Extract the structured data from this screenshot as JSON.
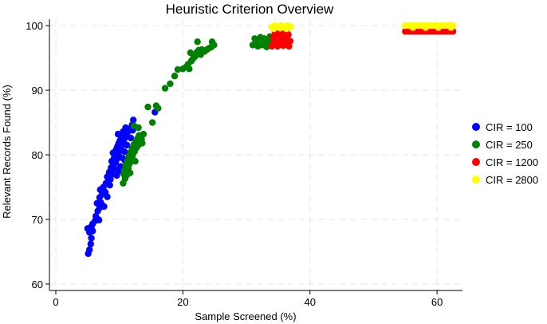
{
  "chart_data": {
    "type": "scatter",
    "title": "Heuristic Criterion Overview",
    "xlabel": "Sample Screened (%)",
    "ylabel": "Relevant Records Found (%)",
    "xlim": [
      -1,
      64
    ],
    "ylim": [
      59,
      101
    ],
    "xticks": [
      0,
      20,
      40,
      60
    ],
    "yticks": [
      60,
      70,
      80,
      90,
      100
    ],
    "grid": true,
    "legend_position": "right",
    "series": [
      {
        "name": "CIR = 100",
        "color": "#0000ff",
        "points": [
          [
            5.1,
            64.7
          ],
          [
            5.3,
            65.3
          ],
          [
            5.5,
            66.2
          ],
          [
            5.6,
            67.1
          ],
          [
            5.3,
            68.0
          ],
          [
            5.0,
            68.6
          ],
          [
            5.6,
            68.9
          ],
          [
            5.8,
            69.3
          ],
          [
            6.2,
            69.8
          ],
          [
            6.5,
            70.1
          ],
          [
            6.8,
            69.9
          ],
          [
            6.6,
            71.3
          ],
          [
            6.9,
            71.8
          ],
          [
            6.5,
            72.5
          ],
          [
            7.1,
            72.6
          ],
          [
            6.9,
            73.4
          ],
          [
            7.3,
            73.9
          ],
          [
            7.0,
            74.6
          ],
          [
            7.5,
            75.0
          ],
          [
            7.8,
            74.2
          ],
          [
            8.1,
            73.5
          ],
          [
            7.9,
            75.6
          ],
          [
            8.3,
            76.0
          ],
          [
            8.1,
            76.6
          ],
          [
            8.6,
            76.2
          ],
          [
            8.4,
            77.3
          ],
          [
            8.9,
            77.0
          ],
          [
            8.7,
            78.0
          ],
          [
            9.1,
            78.4
          ],
          [
            8.8,
            79.0
          ],
          [
            9.4,
            78.8
          ],
          [
            9.2,
            79.6
          ],
          [
            9.6,
            79.3
          ],
          [
            9.0,
            80.3
          ],
          [
            9.8,
            80.0
          ],
          [
            9.5,
            80.8
          ],
          [
            10.0,
            80.6
          ],
          [
            9.7,
            81.3
          ],
          [
            10.2,
            81.0
          ],
          [
            9.9,
            81.8
          ],
          [
            10.4,
            81.5
          ],
          [
            10.1,
            82.2
          ],
          [
            10.6,
            82.0
          ],
          [
            10.3,
            82.8
          ],
          [
            10.8,
            82.5
          ],
          [
            9.8,
            83.2
          ],
          [
            11.0,
            83.0
          ],
          [
            11.3,
            83.5
          ],
          [
            11.6,
            84.0
          ],
          [
            12.0,
            84.6
          ],
          [
            12.2,
            85.4
          ],
          [
            11.0,
            84.2
          ],
          [
            15.6,
            86.6
          ],
          [
            10.0,
            77.5
          ],
          [
            9.3,
            77.8
          ],
          [
            10.5,
            79.5
          ],
          [
            10.8,
            80.5
          ],
          [
            9.6,
            76.8
          ],
          [
            8.5,
            75.3
          ],
          [
            11.2,
            81.5
          ],
          [
            10.9,
            79.1
          ],
          [
            11.5,
            80.2
          ],
          [
            7.6,
            72.0
          ],
          [
            6.3,
            70.5
          ],
          [
            5.8,
            68.2
          ],
          [
            10.2,
            78.2
          ],
          [
            9.9,
            79.9
          ],
          [
            11.8,
            82.6
          ],
          [
            12.1,
            83.8
          ],
          [
            10.6,
            83.6
          ]
        ]
      },
      {
        "name": "CIR = 250",
        "color": "#008000",
        "points": [
          [
            10.6,
            75.6
          ],
          [
            10.9,
            76.3
          ],
          [
            11.2,
            76.9
          ],
          [
            10.8,
            77.6
          ],
          [
            11.4,
            77.9
          ],
          [
            11.0,
            78.4
          ],
          [
            11.6,
            78.6
          ],
          [
            11.3,
            79.1
          ],
          [
            11.9,
            79.3
          ],
          [
            11.5,
            79.8
          ],
          [
            12.1,
            79.9
          ],
          [
            11.8,
            80.4
          ],
          [
            12.4,
            80.5
          ],
          [
            12.0,
            81.0
          ],
          [
            12.7,
            81.1
          ],
          [
            12.3,
            81.6
          ],
          [
            13.0,
            81.5
          ],
          [
            12.6,
            82.1
          ],
          [
            13.3,
            82.0
          ],
          [
            12.9,
            82.6
          ],
          [
            13.5,
            82.4
          ],
          [
            13.1,
            83.0
          ],
          [
            12.3,
            84.5
          ],
          [
            13.0,
            84.2
          ],
          [
            13.8,
            83.2
          ],
          [
            14.5,
            87.4
          ],
          [
            15.2,
            85.0
          ],
          [
            16.1,
            87.2
          ],
          [
            15.8,
            87.6
          ],
          [
            17.2,
            90.3
          ],
          [
            18.0,
            91.0
          ],
          [
            18.7,
            92.2
          ],
          [
            19.2,
            93.2
          ],
          [
            20.0,
            93.3
          ],
          [
            20.5,
            93.6
          ],
          [
            20.8,
            94.0
          ],
          [
            21.0,
            93.3
          ],
          [
            21.3,
            94.5
          ],
          [
            21.6,
            94.9
          ],
          [
            21.9,
            95.2
          ],
          [
            21.2,
            95.8
          ],
          [
            22.2,
            95.9
          ],
          [
            22.5,
            96.2
          ],
          [
            22.8,
            95.5
          ],
          [
            23.0,
            96.3
          ],
          [
            23.4,
            96.0
          ],
          [
            23.8,
            96.3
          ],
          [
            24.1,
            96.5
          ],
          [
            24.5,
            96.7
          ],
          [
            24.9,
            97.0
          ],
          [
            24.6,
            97.5
          ],
          [
            22.3,
            97.5
          ],
          [
            31.0,
            97.0
          ],
          [
            31.5,
            97.4
          ],
          [
            32.0,
            97.8
          ],
          [
            32.5,
            97.0
          ],
          [
            33.0,
            97.3
          ],
          [
            31.8,
            96.8
          ],
          [
            32.8,
            98.0
          ],
          [
            33.5,
            97.6
          ],
          [
            34.0,
            97.2
          ],
          [
            33.7,
            98.3
          ],
          [
            32.2,
            98.2
          ],
          [
            31.3,
            98.0
          ],
          [
            34.5,
            97.5
          ],
          [
            33.2,
            96.7
          ],
          [
            12.5,
            79.0
          ],
          [
            11.7,
            77.2
          ],
          [
            13.6,
            81.8
          ],
          [
            10.7,
            77.0
          ]
        ]
      },
      {
        "name": "CIR = 1200",
        "color": "#ff0000",
        "points": [
          [
            34.0,
            96.8
          ],
          [
            34.3,
            97.2
          ],
          [
            34.6,
            97.6
          ],
          [
            34.9,
            96.8
          ],
          [
            35.2,
            97.3
          ],
          [
            35.5,
            97.8
          ],
          [
            35.8,
            96.9
          ],
          [
            36.1,
            97.4
          ],
          [
            36.4,
            97.9
          ],
          [
            36.7,
            96.8
          ],
          [
            34.2,
            98.2
          ],
          [
            34.8,
            98.5
          ],
          [
            35.4,
            98.8
          ],
          [
            36.0,
            98.3
          ],
          [
            36.6,
            98.6
          ],
          [
            35.1,
            99.0
          ],
          [
            36.3,
            99.2
          ],
          [
            34.5,
            98.9
          ],
          [
            35.7,
            98.1
          ],
          [
            36.9,
            97.6
          ],
          [
            55.0,
            99.1
          ],
          [
            55.5,
            99.1
          ],
          [
            56.0,
            99.1
          ],
          [
            56.5,
            99.1
          ],
          [
            57.0,
            99.1
          ],
          [
            57.5,
            99.1
          ],
          [
            58.0,
            99.1
          ],
          [
            58.5,
            99.1
          ],
          [
            59.0,
            99.1
          ],
          [
            59.5,
            99.1
          ],
          [
            60.0,
            99.1
          ],
          [
            60.5,
            99.1
          ],
          [
            61.0,
            99.1
          ],
          [
            61.5,
            99.1
          ],
          [
            62.0,
            99.1
          ],
          [
            62.5,
            99.1
          ],
          [
            55.8,
            99.4
          ],
          [
            57.8,
            99.4
          ],
          [
            59.8,
            99.4
          ],
          [
            61.8,
            99.4
          ]
        ]
      },
      {
        "name": "CIR = 2800",
        "color": "#ffff00",
        "points": [
          [
            34.0,
            99.8
          ],
          [
            34.5,
            100.0
          ],
          [
            35.0,
            99.8
          ],
          [
            35.5,
            100.0
          ],
          [
            36.0,
            99.8
          ],
          [
            36.5,
            100.0
          ],
          [
            37.0,
            99.8
          ],
          [
            34.3,
            99.5
          ],
          [
            35.3,
            99.6
          ],
          [
            36.3,
            99.5
          ],
          [
            55.0,
            100.0
          ],
          [
            55.5,
            100.0
          ],
          [
            56.0,
            100.0
          ],
          [
            56.5,
            100.0
          ],
          [
            57.0,
            100.0
          ],
          [
            57.5,
            100.0
          ],
          [
            58.0,
            100.0
          ],
          [
            58.5,
            100.0
          ],
          [
            59.0,
            100.0
          ],
          [
            59.5,
            100.0
          ],
          [
            60.0,
            100.0
          ],
          [
            60.5,
            100.0
          ],
          [
            61.0,
            100.0
          ],
          [
            61.5,
            100.0
          ],
          [
            62.0,
            100.0
          ],
          [
            62.5,
            100.0
          ],
          [
            56.2,
            99.7
          ],
          [
            58.2,
            99.7
          ],
          [
            60.2,
            99.7
          ],
          [
            62.2,
            99.7
          ]
        ]
      }
    ]
  }
}
